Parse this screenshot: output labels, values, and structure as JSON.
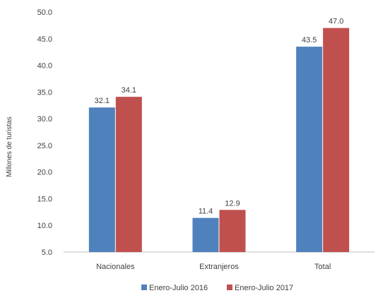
{
  "chart_data": {
    "type": "bar",
    "categories": [
      "Nacionales",
      "Extranjeros",
      "Total"
    ],
    "series": [
      {
        "name": "Enero-Julio 2016",
        "values": [
          32.1,
          11.4,
          43.5
        ],
        "color": "#4F81BD"
      },
      {
        "name": "Enero-Julio 2017",
        "values": [
          34.1,
          12.9,
          47.0
        ],
        "color": "#C0504D"
      }
    ],
    "value_labels": [
      [
        "32.1",
        "11.4",
        "43.5"
      ],
      [
        "34.1",
        "12.9",
        "47.0"
      ]
    ],
    "ylabel": "Millones de turistas",
    "ylim": [
      5.0,
      50.0
    ],
    "y_ticks": [
      "5.0",
      "10.0",
      "15.0",
      "20.0",
      "25.0",
      "30.0",
      "35.0",
      "40.0",
      "45.0",
      "50.0"
    ],
    "grid": false,
    "legend": "bottom"
  }
}
